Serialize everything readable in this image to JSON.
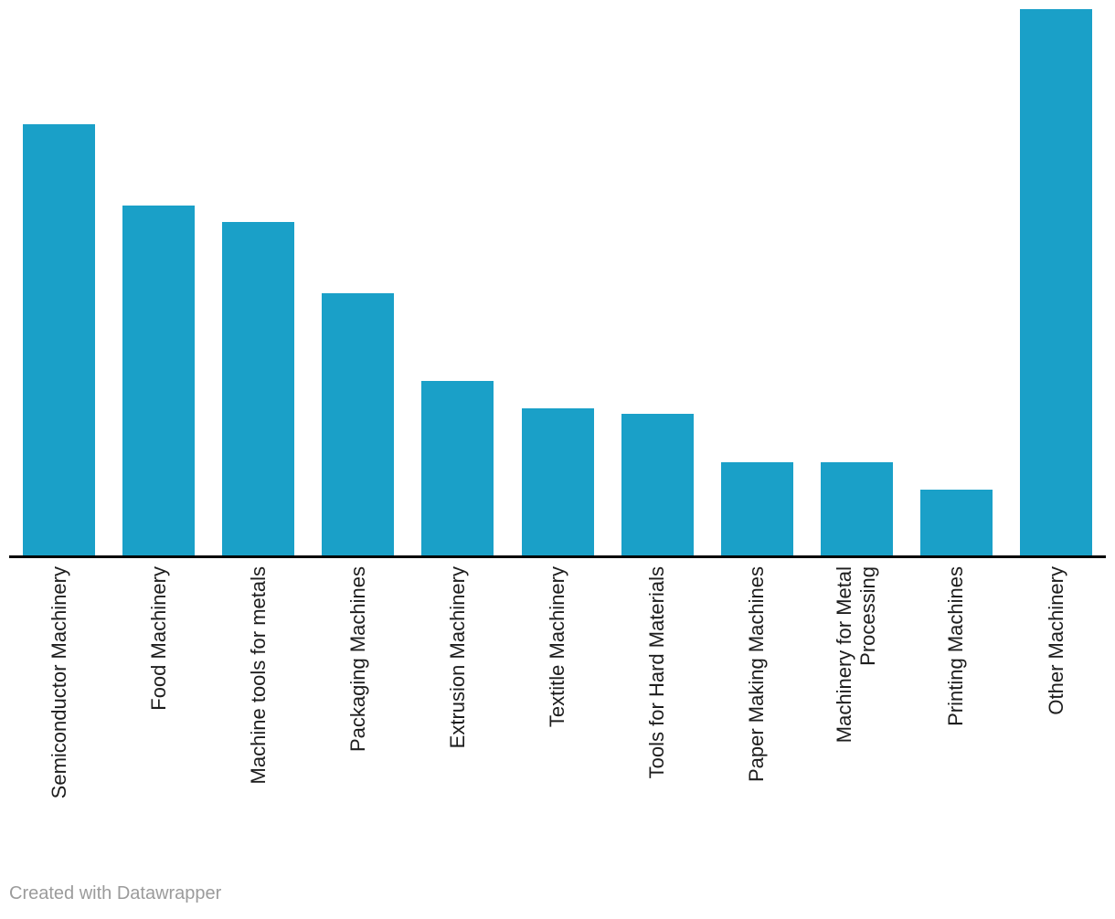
{
  "chart_data": {
    "type": "bar",
    "title": "",
    "xlabel": "",
    "ylabel": "",
    "categories": [
      "Semiconductor Machinery",
      "Food Machinery",
      "Machine tools for metals",
      "Packaging Machines",
      "Extrusion Machinery",
      "Textitle Machinery",
      "Tools for Hard Materials",
      "Paper Making Machines",
      "Machinery for Metal\nProcessing",
      "Printing Machines",
      "Other Machinery"
    ],
    "values": [
      79,
      64,
      61,
      48,
      32,
      27,
      26,
      17,
      17,
      12,
      100
    ],
    "values_note": "relative bar heights estimated from pixels, percent of tallest bar (no y-axis values shown in chart)",
    "ylim": [
      0,
      100
    ],
    "grid": "off",
    "legend": "none",
    "x_tick_label_rotation": -90
  },
  "colors": {
    "bar": "#1aa0c8",
    "axis_line": "#000000",
    "tick_label": "#1d1d1d",
    "credit_text": "#9b9b9b",
    "background": "#ffffff"
  },
  "footer": {
    "credit": "Created with Datawrapper"
  }
}
